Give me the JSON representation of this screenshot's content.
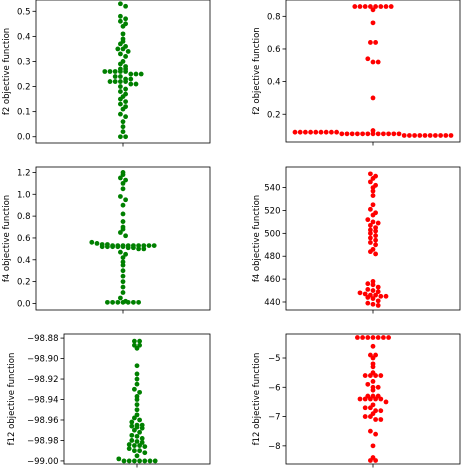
{
  "chart_data": [
    {
      "type": "scatter",
      "style": "swarm",
      "color": "#008000",
      "ylabel": "f2 objective function",
      "ylim": [
        -0.025,
        0.545
      ],
      "yticks": [
        0.0,
        0.1,
        0.2,
        0.3,
        0.4,
        0.5
      ],
      "ytick_labels": [
        "0.0",
        "0.1",
        "0.2",
        "0.3",
        "0.4",
        "0.5"
      ],
      "values": [
        0.53,
        0.52,
        0.48,
        0.47,
        0.46,
        0.45,
        0.44,
        0.41,
        0.39,
        0.38,
        0.37,
        0.36,
        0.35,
        0.35,
        0.34,
        0.33,
        0.32,
        0.3,
        0.29,
        0.28,
        0.27,
        0.27,
        0.26,
        0.26,
        0.26,
        0.26,
        0.26,
        0.25,
        0.25,
        0.25,
        0.24,
        0.24,
        0.23,
        0.23,
        0.22,
        0.22,
        0.22,
        0.22,
        0.21,
        0.21,
        0.2,
        0.19,
        0.18,
        0.17,
        0.16,
        0.15,
        0.14,
        0.13,
        0.12,
        0.11,
        0.09,
        0.08,
        0.06,
        0.04,
        0.02,
        0.0,
        0.0
      ]
    },
    {
      "type": "scatter",
      "style": "swarm",
      "color": "#ff0000",
      "ylabel": "f2 objective function",
      "ylim": [
        0.03,
        0.9
      ],
      "yticks": [
        0.2,
        0.4,
        0.6,
        0.8
      ],
      "ytick_labels": [
        "0.2",
        "0.4",
        "0.6",
        "0.8"
      ],
      "values": [
        0.86,
        0.86,
        0.86,
        0.86,
        0.86,
        0.86,
        0.86,
        0.86,
        0.84,
        0.76,
        0.64,
        0.64,
        0.54,
        0.52,
        0.52,
        0.3,
        0.1,
        0.09,
        0.09,
        0.09,
        0.09,
        0.09,
        0.09,
        0.09,
        0.09,
        0.09,
        0.08,
        0.08,
        0.08,
        0.08,
        0.08,
        0.08,
        0.08,
        0.08,
        0.08,
        0.08,
        0.08,
        0.08,
        0.07,
        0.07,
        0.07,
        0.07,
        0.07,
        0.07,
        0.07,
        0.07,
        0.07,
        0.07
      ]
    },
    {
      "type": "scatter",
      "style": "swarm",
      "color": "#008000",
      "ylabel": "f4 objective function",
      "ylim": [
        -0.06,
        1.25
      ],
      "yticks": [
        0.0,
        0.2,
        0.4,
        0.6,
        0.8,
        1.0,
        1.2
      ],
      "ytick_labels": [
        "0.0",
        "0.2",
        "0.4",
        "0.6",
        "0.8",
        "1.0",
        "1.2"
      ],
      "values": [
        1.2,
        1.18,
        1.15,
        1.13,
        1.1,
        1.05,
        0.98,
        0.95,
        0.9,
        0.82,
        0.75,
        0.7,
        0.68,
        0.65,
        0.62,
        0.56,
        0.55,
        0.54,
        0.54,
        0.53,
        0.53,
        0.53,
        0.53,
        0.53,
        0.53,
        0.53,
        0.53,
        0.53,
        0.52,
        0.52,
        0.52,
        0.52,
        0.52,
        0.51,
        0.51,
        0.5,
        0.5,
        0.47,
        0.45,
        0.42,
        0.38,
        0.35,
        0.3,
        0.25,
        0.2,
        0.15,
        0.1,
        0.05,
        0.02,
        0.01,
        0.01,
        0.01,
        0.01,
        0.01,
        0.01,
        0.01
      ]
    },
    {
      "type": "scatter",
      "style": "swarm",
      "color": "#ff0000",
      "ylabel": "f4 objective function",
      "ylim": [
        433,
        558
      ],
      "yticks": [
        440,
        460,
        480,
        500,
        520,
        540
      ],
      "ytick_labels": [
        "440",
        "460",
        "480",
        "500",
        "520",
        "540"
      ],
      "values": [
        552,
        550,
        548,
        545,
        542,
        540,
        537,
        533,
        525,
        521,
        518,
        516,
        512,
        510,
        509,
        507,
        505,
        503,
        502,
        500,
        498,
        496,
        494,
        492,
        490,
        486,
        484,
        482,
        458,
        456,
        455,
        453,
        451,
        450,
        449,
        448,
        447,
        446,
        446,
        445,
        445,
        444,
        443,
        441,
        439,
        438,
        437
      ]
    },
    {
      "type": "scatter",
      "style": "swarm",
      "color": "#008000",
      "ylabel": "f12 objective function",
      "ylim": [
        -99.003,
        -98.876
      ],
      "yticks": [
        -98.88,
        -98.9,
        -98.92,
        -98.94,
        -98.96,
        -98.98,
        -99.0
      ],
      "ytick_labels": [
        "−98.88",
        "−98.90",
        "−98.92",
        "−98.94",
        "−98.96",
        "−98.98",
        "−99.00"
      ],
      "values": [
        -98.883,
        -98.883,
        -98.887,
        -98.887,
        -98.89,
        -98.907,
        -98.915,
        -98.92,
        -98.925,
        -98.93,
        -98.933,
        -98.937,
        -98.94,
        -98.945,
        -98.95,
        -98.955,
        -98.958,
        -98.96,
        -98.962,
        -98.965,
        -98.965,
        -98.966,
        -98.967,
        -98.968,
        -98.97,
        -98.972,
        -98.975,
        -98.976,
        -98.978,
        -98.98,
        -98.981,
        -98.982,
        -98.984,
        -98.985,
        -98.985,
        -98.986,
        -98.988,
        -98.99,
        -98.99,
        -98.992,
        -98.995,
        -98.998,
        -99.0,
        -99.0,
        -99.0,
        -99.0,
        -99.0,
        -99.0,
        -99.0
      ]
    },
    {
      "type": "scatter",
      "style": "swarm",
      "color": "#ff0000",
      "ylabel": "f12 objective function",
      "ylim": [
        -8.62,
        -4.18
      ],
      "yticks": [
        -5,
        -6,
        -7,
        -8
      ],
      "ytick_labels": [
        "−5",
        "−6",
        "−7",
        "−8"
      ],
      "values": [
        -4.3,
        -4.3,
        -4.3,
        -4.3,
        -4.3,
        -4.3,
        -4.3,
        -4.6,
        -4.9,
        -4.9,
        -5.0,
        -5.2,
        -5.3,
        -5.5,
        -5.6,
        -5.6,
        -5.6,
        -5.6,
        -5.8,
        -5.9,
        -6.0,
        -6.0,
        -6.1,
        -6.3,
        -6.3,
        -6.3,
        -6.4,
        -6.4,
        -6.4,
        -6.4,
        -6.4,
        -6.5,
        -6.6,
        -6.7,
        -6.7,
        -6.8,
        -6.8,
        -6.9,
        -7.0,
        -7.0,
        -7.1,
        -7.1,
        -7.5,
        -7.6,
        -8.0,
        -8.4,
        -8.5,
        -8.5
      ]
    }
  ]
}
